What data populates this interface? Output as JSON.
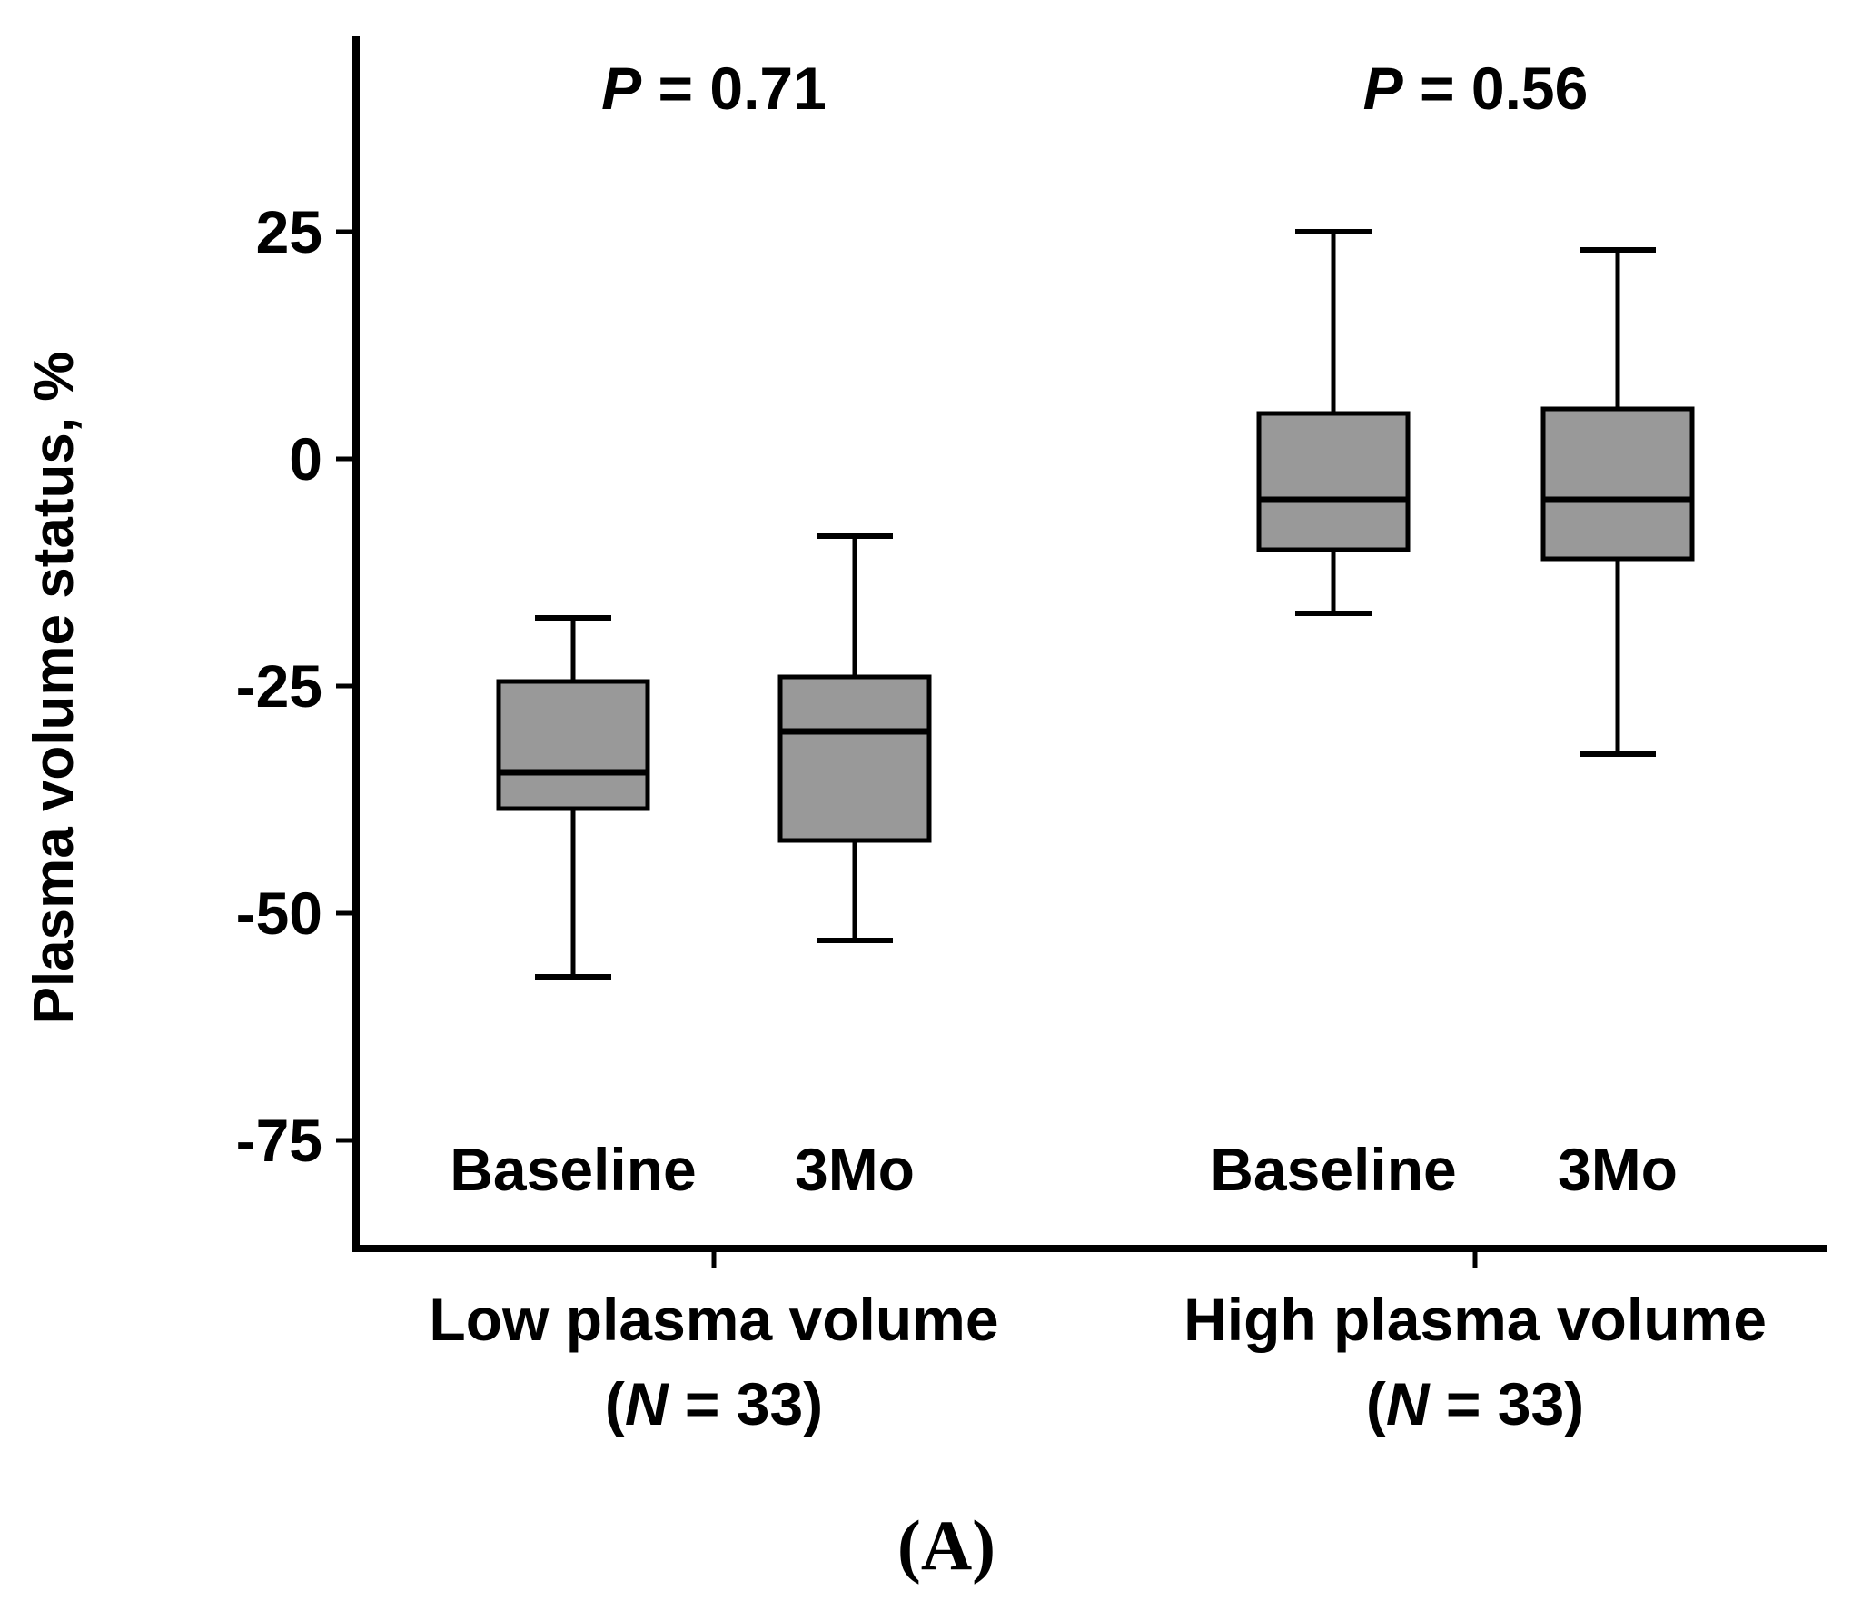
{
  "chart_data": {
    "type": "boxplot",
    "ylabel": "Plasma volume status, %",
    "ylim": [
      -87,
      45
    ],
    "yticks": [
      25,
      0,
      -25,
      -50,
      -75
    ],
    "ytick_labels": [
      "25",
      "0",
      "-25",
      "-50",
      "-75"
    ],
    "panel_label": "(A)",
    "colors": {
      "box_fill": "#999999",
      "stroke": "#000000"
    },
    "groups": [
      {
        "name": "Low plasma volume",
        "n_text": "(N = 33)",
        "n_prefix": "(",
        "n_letter": "N",
        "n_suffix": " = 33)",
        "p_letter": "P",
        "p_suffix": " = 0.71",
        "boxes": [
          {
            "label": "Baseline",
            "whisker_low": -57,
            "q1": -38.5,
            "median": -34.5,
            "q3": -24.5,
            "whisker_high": -17.5
          },
          {
            "label": "3Mo",
            "whisker_low": -53,
            "q1": -42,
            "median": -30,
            "q3": -24,
            "whisker_high": -8.5
          }
        ]
      },
      {
        "name": "High plasma volume",
        "n_text": "(N = 33)",
        "n_prefix": "(",
        "n_letter": "N",
        "n_suffix": " = 33)",
        "p_letter": "P",
        "p_suffix": " = 0.56",
        "boxes": [
          {
            "label": "Baseline",
            "whisker_low": -17,
            "q1": -10,
            "median": -4.5,
            "q3": 5,
            "whisker_high": 25
          },
          {
            "label": "3Mo",
            "whisker_low": -32.5,
            "q1": -11,
            "median": -4.5,
            "q3": 5.5,
            "whisker_high": 23
          }
        ]
      }
    ]
  }
}
